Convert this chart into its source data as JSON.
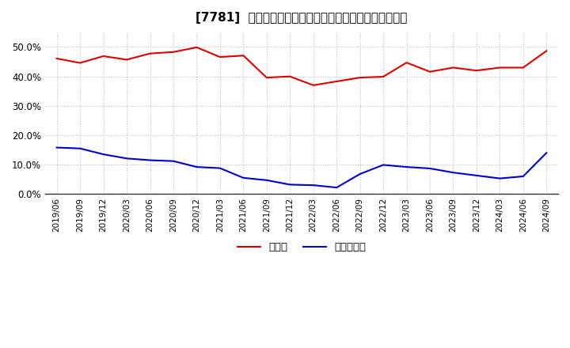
{
  "title": "[7781]  現預金、有利子負債の総資産に対する比率の推移",
  "x_labels": [
    "2019/06",
    "2019/09",
    "2019/12",
    "2020/03",
    "2020/06",
    "2020/09",
    "2020/12",
    "2021/03",
    "2021/06",
    "2021/09",
    "2021/12",
    "2022/03",
    "2022/06",
    "2022/09",
    "2022/12",
    "2023/03",
    "2023/06",
    "2023/09",
    "2023/12",
    "2024/03",
    "2024/06",
    "2024/09"
  ],
  "cash_values": [
    0.461,
    0.446,
    0.469,
    0.457,
    0.478,
    0.483,
    0.499,
    0.466,
    0.471,
    0.396,
    0.4,
    0.37,
    0.383,
    0.396,
    0.399,
    0.447,
    0.416,
    0.43,
    0.42,
    0.43,
    0.43,
    0.487
  ],
  "debt_values": [
    0.158,
    0.155,
    0.135,
    0.121,
    0.115,
    0.112,
    0.092,
    0.088,
    0.055,
    0.047,
    0.032,
    0.03,
    0.022,
    0.068,
    0.099,
    0.092,
    0.087,
    0.073,
    0.063,
    0.053,
    0.06,
    0.14
  ],
  "cash_color": "#dd0000",
  "debt_color": "#0000cc",
  "background_color": "#ffffff",
  "plot_bg_color": "#ffffff",
  "grid_color": "#bbbbbb",
  "ylim": [
    0.0,
    0.55
  ],
  "yticks": [
    0.0,
    0.1,
    0.2,
    0.3,
    0.4,
    0.5
  ],
  "legend_cash": "現預金",
  "legend_debt": "有利子負債"
}
